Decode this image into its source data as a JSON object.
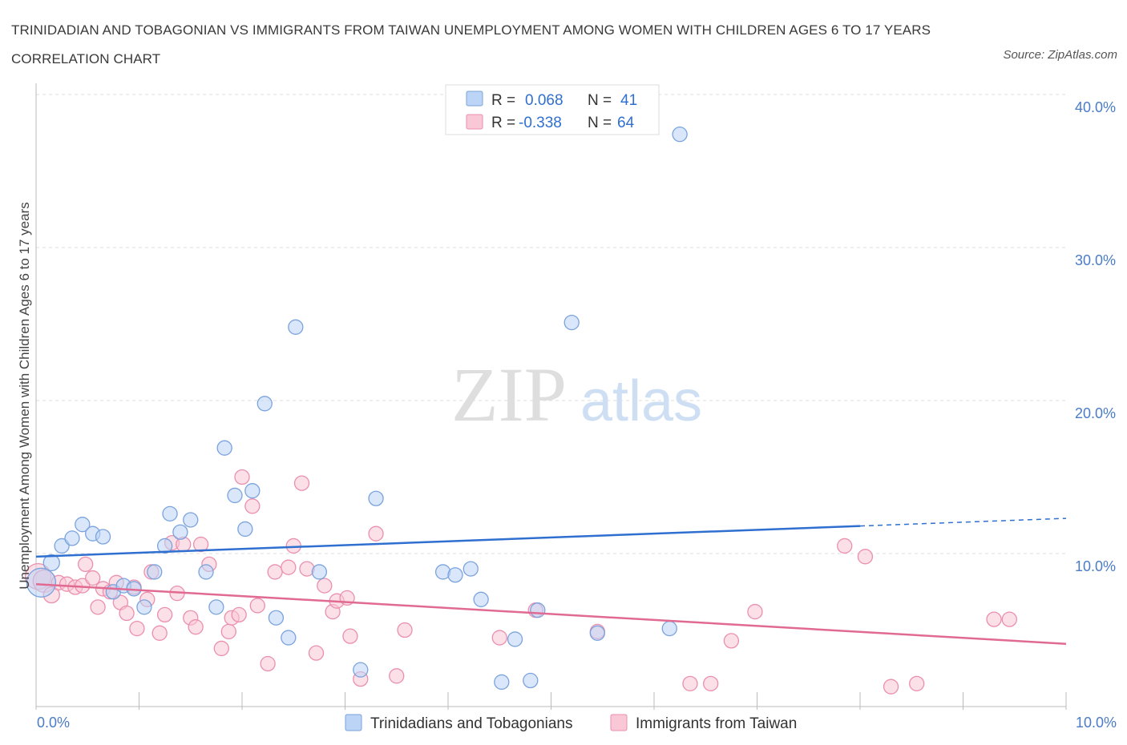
{
  "title": "TRINIDADIAN AND TOBAGONIAN VS IMMIGRANTS FROM TAIWAN UNEMPLOYMENT AMONG WOMEN WITH CHILDREN AGES 6 TO 17 YEARS CORRELATION CHART",
  "source": "Source: ZipAtlas.com",
  "watermark": {
    "zip": "ZIP",
    "atlas": "atlas"
  },
  "colors": {
    "blue_fill": "#bcd4f5",
    "blue_stroke": "#7aa3dd",
    "blue_line": "#2f6fd0",
    "pink_fill": "#f9c7d6",
    "pink_stroke": "#eb8fae",
    "pink_line": "#e06a92",
    "axis_text": "#4a7cc7",
    "grid": "#dddddd"
  },
  "stats_legend": [
    {
      "r_label": "R =",
      "r_value": "0.068",
      "n_label": "N =",
      "n_value": "41"
    },
    {
      "r_label": "R =",
      "r_value": "-0.338",
      "n_label": "N =",
      "n_value": "64"
    }
  ],
  "chart_data": {
    "type": "scatter",
    "title": "TRINIDADIAN AND TOBAGONIAN VS IMMIGRANTS FROM TAIWAN UNEMPLOYMENT AMONG WOMEN WITH CHILDREN AGES 6 TO 17 YEARS CORRELATION CHART",
    "xlabel": "",
    "ylabel": "Unemployment Among Women with Children Ages 6 to 17 years",
    "xlim": [
      0,
      10
    ],
    "ylim": [
      0,
      40
    ],
    "x_tick_labels": [
      "0.0%",
      "10.0%"
    ],
    "y_ticks": [
      10,
      20,
      30,
      40
    ],
    "y_tick_labels": [
      "10.0%",
      "20.0%",
      "30.0%",
      "40.0%"
    ],
    "grid": true,
    "legend_position": "bottom",
    "series": [
      {
        "name": "Trinidadians and Tobagonians",
        "trend": {
          "x": [
            0,
            8.0
          ],
          "y": [
            9.8,
            11.8
          ],
          "dashed_to": [
            10,
            12.3
          ]
        },
        "points": [
          [
            0.05,
            8.1,
            18
          ],
          [
            0.15,
            9.4,
            10
          ],
          [
            0.25,
            10.5,
            9
          ],
          [
            0.35,
            11.0,
            9
          ],
          [
            0.45,
            11.9,
            9
          ],
          [
            0.55,
            11.3,
            9
          ],
          [
            0.65,
            11.1,
            9
          ],
          [
            0.75,
            7.5,
            9
          ],
          [
            0.85,
            7.9,
            9
          ],
          [
            0.95,
            7.7,
            9
          ],
          [
            1.05,
            6.5,
            9
          ],
          [
            1.15,
            8.8,
            9
          ],
          [
            1.25,
            10.5,
            9
          ],
          [
            1.3,
            12.6,
            9
          ],
          [
            1.4,
            11.4,
            9
          ],
          [
            1.5,
            12.2,
            9
          ],
          [
            1.65,
            8.8,
            9
          ],
          [
            1.75,
            6.5,
            9
          ],
          [
            1.83,
            16.9,
            9
          ],
          [
            1.93,
            13.8,
            9
          ],
          [
            2.03,
            11.6,
            9
          ],
          [
            2.1,
            14.1,
            9
          ],
          [
            2.22,
            19.8,
            9
          ],
          [
            2.33,
            5.8,
            9
          ],
          [
            2.45,
            4.5,
            9
          ],
          [
            2.52,
            24.8,
            9
          ],
          [
            2.75,
            8.8,
            9
          ],
          [
            3.15,
            2.4,
            9
          ],
          [
            3.3,
            13.6,
            9
          ],
          [
            3.95,
            8.8,
            9
          ],
          [
            4.07,
            8.6,
            9
          ],
          [
            4.22,
            9.0,
            9
          ],
          [
            4.32,
            7.0,
            9
          ],
          [
            4.52,
            1.6,
            9
          ],
          [
            4.65,
            4.4,
            9
          ],
          [
            4.8,
            1.7,
            9
          ],
          [
            4.87,
            6.3,
            9
          ],
          [
            5.2,
            25.1,
            9
          ],
          [
            5.45,
            4.8,
            9
          ],
          [
            6.15,
            5.1,
            9
          ],
          [
            6.25,
            37.4,
            9
          ]
        ]
      },
      {
        "name": "Immigrants from Taiwan",
        "trend": {
          "x": [
            0,
            10
          ],
          "y": [
            8.0,
            4.1
          ]
        },
        "points": [
          [
            0.02,
            8.5,
            16
          ],
          [
            0.08,
            8.2,
            14
          ],
          [
            0.15,
            7.3,
            10
          ],
          [
            0.22,
            8.1,
            9
          ],
          [
            0.3,
            8.0,
            9
          ],
          [
            0.38,
            7.8,
            9
          ],
          [
            0.45,
            7.9,
            9
          ],
          [
            0.48,
            9.3,
            9
          ],
          [
            0.55,
            8.4,
            9
          ],
          [
            0.6,
            6.5,
            9
          ],
          [
            0.65,
            7.7,
            9
          ],
          [
            0.72,
            7.5,
            9
          ],
          [
            0.78,
            8.1,
            9
          ],
          [
            0.82,
            6.8,
            9
          ],
          [
            0.88,
            6.1,
            9
          ],
          [
            0.95,
            7.8,
            9
          ],
          [
            0.98,
            5.1,
            9
          ],
          [
            1.08,
            7.0,
            9
          ],
          [
            1.12,
            8.8,
            9
          ],
          [
            1.2,
            4.8,
            9
          ],
          [
            1.25,
            6.0,
            9
          ],
          [
            1.32,
            10.7,
            9
          ],
          [
            1.37,
            7.4,
            9
          ],
          [
            1.43,
            10.6,
            9
          ],
          [
            1.5,
            5.8,
            9
          ],
          [
            1.55,
            5.2,
            9
          ],
          [
            1.6,
            10.6,
            9
          ],
          [
            1.68,
            9.3,
            9
          ],
          [
            1.8,
            3.8,
            9
          ],
          [
            1.87,
            4.9,
            9
          ],
          [
            1.9,
            5.8,
            9
          ],
          [
            1.97,
            6.0,
            9
          ],
          [
            2.0,
            15.0,
            9
          ],
          [
            2.1,
            13.1,
            9
          ],
          [
            2.15,
            6.6,
            9
          ],
          [
            2.25,
            2.8,
            9
          ],
          [
            2.32,
            8.8,
            9
          ],
          [
            2.45,
            9.1,
            9
          ],
          [
            2.5,
            10.5,
            9
          ],
          [
            2.58,
            14.6,
            9
          ],
          [
            2.63,
            9.0,
            9
          ],
          [
            2.72,
            3.5,
            9
          ],
          [
            2.8,
            7.9,
            9
          ],
          [
            2.88,
            6.2,
            9
          ],
          [
            2.92,
            6.9,
            9
          ],
          [
            3.02,
            7.1,
            9
          ],
          [
            3.05,
            4.6,
            9
          ],
          [
            3.15,
            1.8,
            9
          ],
          [
            3.3,
            11.3,
            9
          ],
          [
            3.5,
            2.0,
            9
          ],
          [
            3.58,
            5.0,
            9
          ],
          [
            4.5,
            4.5,
            9
          ],
          [
            4.85,
            6.3,
            9
          ],
          [
            5.45,
            4.9,
            9
          ],
          [
            6.35,
            1.5,
            9
          ],
          [
            6.55,
            1.5,
            9
          ],
          [
            6.75,
            4.3,
            9
          ],
          [
            6.98,
            6.2,
            9
          ],
          [
            7.85,
            10.5,
            9
          ],
          [
            8.05,
            9.8,
            9
          ],
          [
            8.3,
            1.3,
            9
          ],
          [
            8.55,
            1.5,
            9
          ],
          [
            9.3,
            5.7,
            9
          ],
          [
            9.45,
            5.7,
            9
          ]
        ]
      }
    ]
  }
}
